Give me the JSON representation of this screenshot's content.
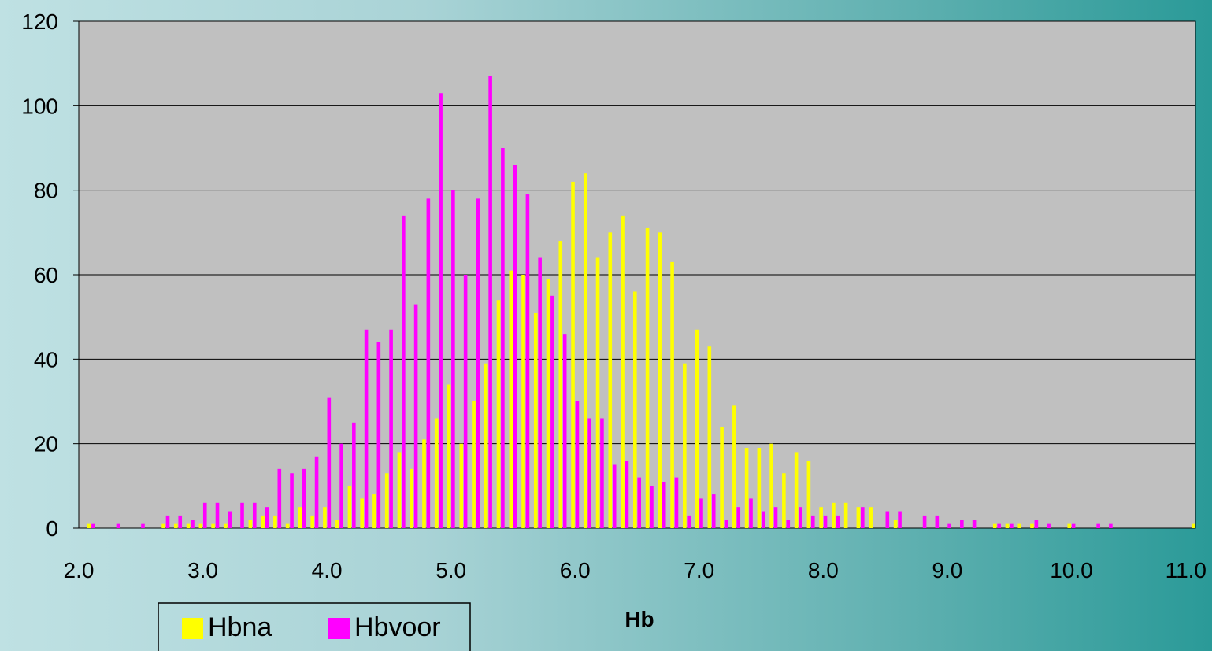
{
  "chart_data": {
    "type": "bar",
    "title": "",
    "xlabel": "Hb",
    "ylabel": "",
    "xlim": [
      2.0,
      11.0
    ],
    "ylim": [
      0,
      120
    ],
    "x_ticks": [
      "2.0",
      "3.0",
      "4.0",
      "5.0",
      "6.0",
      "7.0",
      "8.0",
      "9.0",
      "10.0",
      "11.0"
    ],
    "y_ticks": [
      "0",
      "20",
      "40",
      "60",
      "80",
      "100",
      "120"
    ],
    "grid": true,
    "legend_position": "bottom-left",
    "plot_background": "#c0c0c0",
    "series": [
      {
        "name": "Hbna",
        "color": "#ffff00",
        "points": [
          [
            2.1,
            1
          ],
          [
            2.7,
            1
          ],
          [
            2.8,
            1
          ],
          [
            2.9,
            1
          ],
          [
            3.0,
            1
          ],
          [
            3.1,
            1
          ],
          [
            3.2,
            1
          ],
          [
            3.4,
            2
          ],
          [
            3.5,
            3
          ],
          [
            3.6,
            3
          ],
          [
            3.7,
            1
          ],
          [
            3.8,
            5
          ],
          [
            3.9,
            3
          ],
          [
            4.0,
            5
          ],
          [
            4.1,
            2
          ],
          [
            4.2,
            10
          ],
          [
            4.3,
            7
          ],
          [
            4.4,
            8
          ],
          [
            4.5,
            13
          ],
          [
            4.6,
            18
          ],
          [
            4.7,
            14
          ],
          [
            4.8,
            21
          ],
          [
            4.9,
            26
          ],
          [
            5.0,
            34
          ],
          [
            5.1,
            20
          ],
          [
            5.2,
            30
          ],
          [
            5.3,
            39
          ],
          [
            5.4,
            54
          ],
          [
            5.5,
            61
          ],
          [
            5.6,
            60
          ],
          [
            5.7,
            51
          ],
          [
            5.8,
            59
          ],
          [
            5.9,
            68
          ],
          [
            6.0,
            82
          ],
          [
            6.1,
            84
          ],
          [
            6.2,
            64
          ],
          [
            6.3,
            70
          ],
          [
            6.4,
            74
          ],
          [
            6.5,
            56
          ],
          [
            6.6,
            71
          ],
          [
            6.7,
            70
          ],
          [
            6.8,
            63
          ],
          [
            6.9,
            39
          ],
          [
            7.0,
            47
          ],
          [
            7.1,
            43
          ],
          [
            7.2,
            24
          ],
          [
            7.3,
            29
          ],
          [
            7.4,
            19
          ],
          [
            7.5,
            19
          ],
          [
            7.6,
            20
          ],
          [
            7.7,
            13
          ],
          [
            7.8,
            18
          ],
          [
            7.9,
            16
          ],
          [
            8.0,
            5
          ],
          [
            8.1,
            6
          ],
          [
            8.2,
            6
          ],
          [
            8.3,
            5
          ],
          [
            8.4,
            5
          ],
          [
            8.6,
            2
          ],
          [
            9.4,
            1
          ],
          [
            9.5,
            1
          ],
          [
            9.6,
            1
          ],
          [
            9.7,
            1
          ],
          [
            10.0,
            1
          ],
          [
            11.0,
            1
          ]
        ]
      },
      {
        "name": "Hbvoor",
        "color": "#ff00ff",
        "points": [
          [
            2.1,
            1
          ],
          [
            2.3,
            1
          ],
          [
            2.5,
            1
          ],
          [
            2.7,
            3
          ],
          [
            2.8,
            3
          ],
          [
            2.9,
            2
          ],
          [
            3.0,
            6
          ],
          [
            3.1,
            6
          ],
          [
            3.2,
            4
          ],
          [
            3.3,
            6
          ],
          [
            3.4,
            6
          ],
          [
            3.5,
            5
          ],
          [
            3.6,
            14
          ],
          [
            3.7,
            13
          ],
          [
            3.8,
            14
          ],
          [
            3.9,
            17
          ],
          [
            4.0,
            31
          ],
          [
            4.1,
            20
          ],
          [
            4.2,
            25
          ],
          [
            4.3,
            47
          ],
          [
            4.4,
            44
          ],
          [
            4.5,
            47
          ],
          [
            4.6,
            74
          ],
          [
            4.7,
            53
          ],
          [
            4.8,
            78
          ],
          [
            4.9,
            103
          ],
          [
            5.0,
            80
          ],
          [
            5.1,
            60
          ],
          [
            5.2,
            78
          ],
          [
            5.3,
            107
          ],
          [
            5.4,
            90
          ],
          [
            5.5,
            86
          ],
          [
            5.6,
            79
          ],
          [
            5.7,
            64
          ],
          [
            5.8,
            55
          ],
          [
            5.9,
            46
          ],
          [
            6.0,
            30
          ],
          [
            6.1,
            26
          ],
          [
            6.2,
            26
          ],
          [
            6.3,
            15
          ],
          [
            6.4,
            16
          ],
          [
            6.5,
            12
          ],
          [
            6.6,
            10
          ],
          [
            6.7,
            11
          ],
          [
            6.8,
            12
          ],
          [
            6.9,
            3
          ],
          [
            7.0,
            7
          ],
          [
            7.1,
            8
          ],
          [
            7.2,
            2
          ],
          [
            7.3,
            5
          ],
          [
            7.4,
            7
          ],
          [
            7.5,
            4
          ],
          [
            7.6,
            5
          ],
          [
            7.7,
            2
          ],
          [
            7.8,
            5
          ],
          [
            7.9,
            3
          ],
          [
            8.0,
            3
          ],
          [
            8.1,
            3
          ],
          [
            8.3,
            5
          ],
          [
            8.5,
            4
          ],
          [
            8.6,
            4
          ],
          [
            8.8,
            3
          ],
          [
            8.9,
            3
          ],
          [
            9.0,
            1
          ],
          [
            9.1,
            2
          ],
          [
            9.2,
            2
          ],
          [
            9.4,
            1
          ],
          [
            9.5,
            1
          ],
          [
            9.7,
            2
          ],
          [
            9.8,
            1
          ],
          [
            10.0,
            1
          ],
          [
            10.2,
            1
          ],
          [
            10.3,
            1
          ]
        ]
      }
    ]
  }
}
